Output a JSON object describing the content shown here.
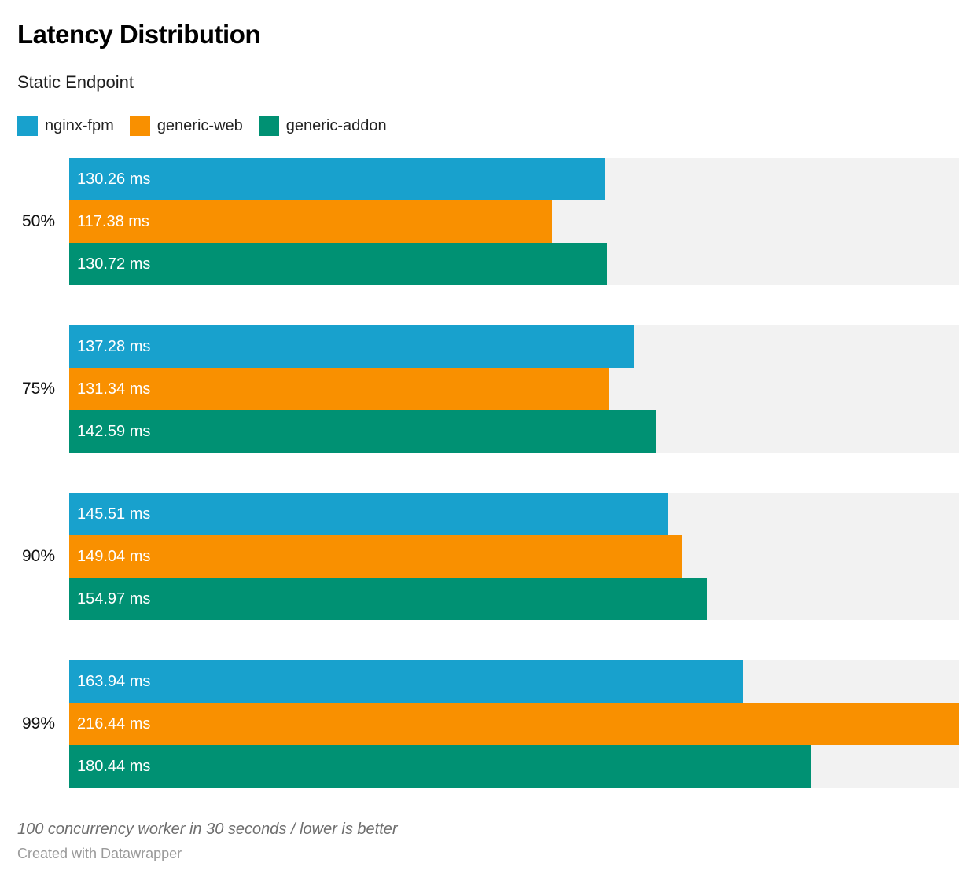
{
  "header": {
    "title": "Latency Distribution",
    "subtitle": "Static Endpoint"
  },
  "legend": [
    {
      "label": "nginx-fpm",
      "color": "#18a1cd"
    },
    {
      "label": "generic-web",
      "color": "#f99000"
    },
    {
      "label": "generic-addon",
      "color": "#009173"
    }
  ],
  "chart_data": {
    "type": "bar",
    "orientation": "horizontal",
    "categories": [
      "50%",
      "75%",
      "90%",
      "99%"
    ],
    "series": [
      {
        "name": "nginx-fpm",
        "color": "#18a1cd",
        "values": [
          130.26,
          137.28,
          145.51,
          163.94
        ]
      },
      {
        "name": "generic-web",
        "color": "#f99000",
        "values": [
          117.38,
          131.34,
          149.04,
          216.44
        ]
      },
      {
        "name": "generic-addon",
        "color": "#009173",
        "values": [
          130.72,
          142.59,
          154.97,
          180.44
        ]
      }
    ],
    "value_suffix": " ms",
    "value_decimals": 2,
    "xmax": 216.44,
    "track_color": "#f2f2f2",
    "value_labels": "inside-start",
    "grid": false,
    "legend_position": "top"
  },
  "footer": {
    "note": "100 concurrency worker in 30 seconds / lower is better",
    "credit": "Created with Datawrapper"
  }
}
